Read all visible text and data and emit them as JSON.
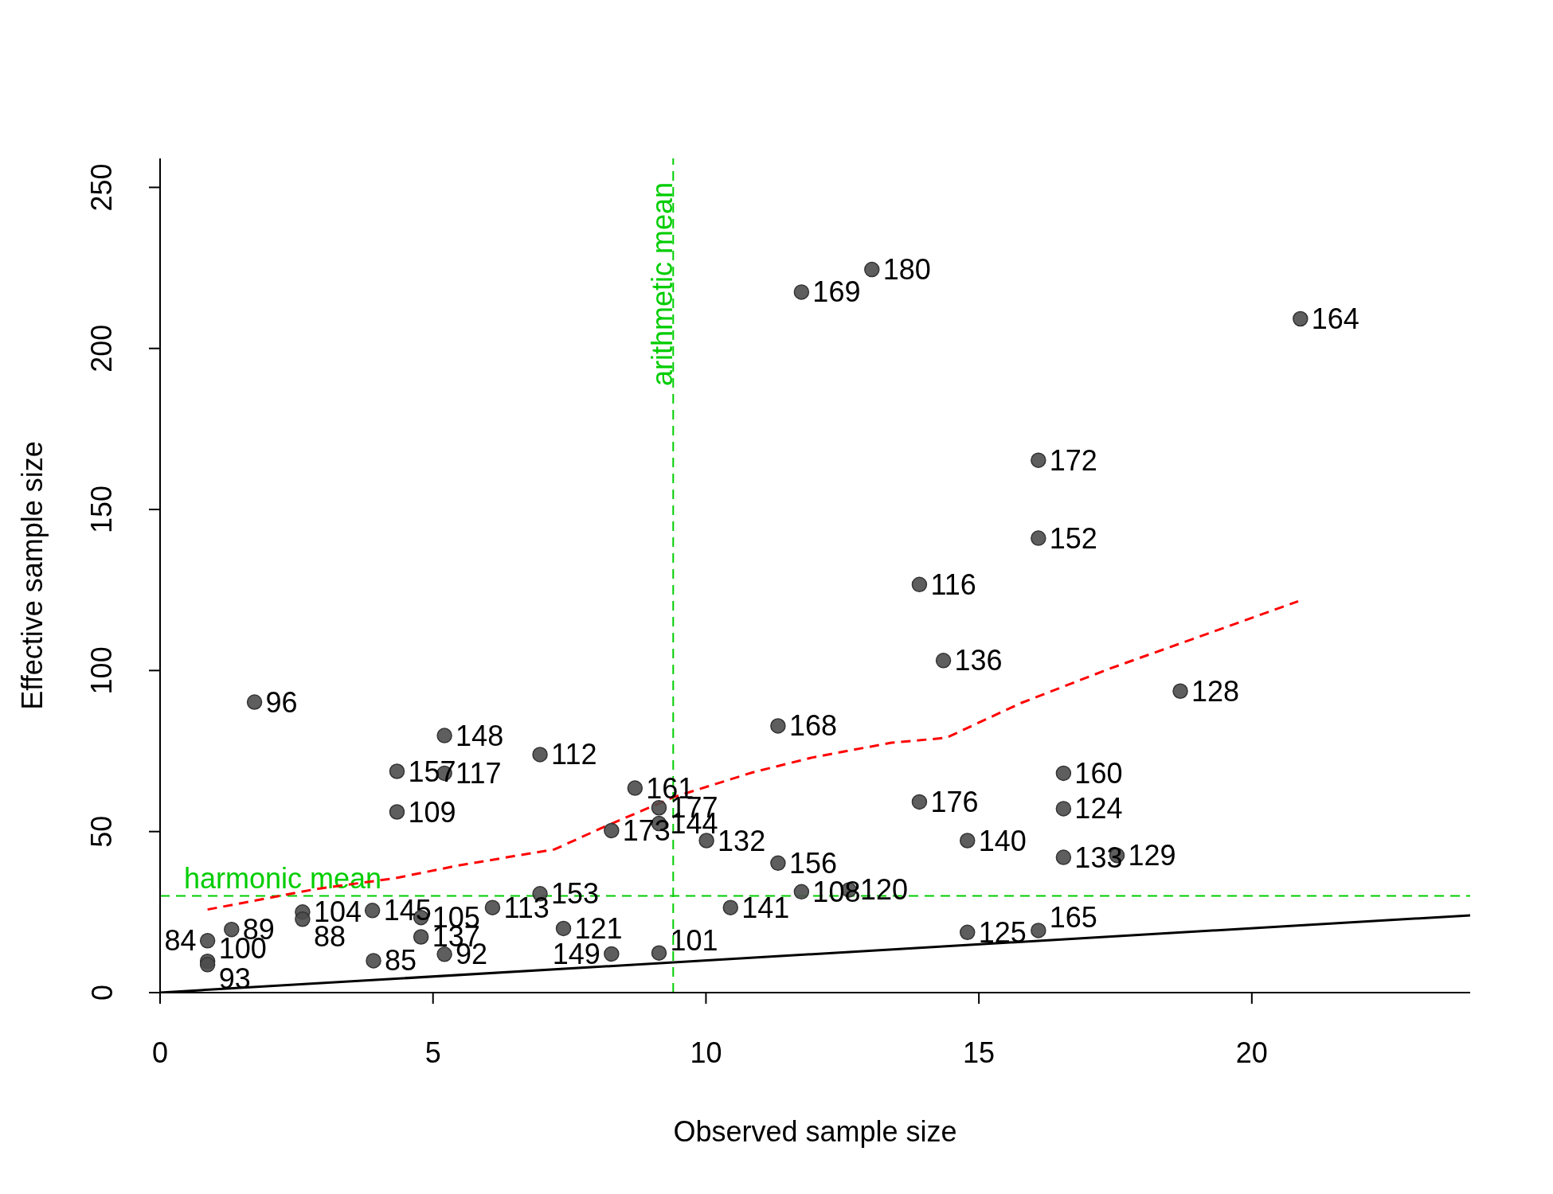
{
  "chart_data": {
    "type": "scatter",
    "xlabel": "Observed sample size",
    "ylabel": "Effective sample size",
    "xlim": [
      0,
      24
    ],
    "ylim": [
      0,
      259
    ],
    "xticks": [
      0,
      5,
      10,
      15,
      20
    ],
    "yticks": [
      0,
      50,
      100,
      150,
      200,
      250
    ],
    "series": [
      {
        "color": "#4d4d4d",
        "marker": "circle",
        "x": [
          1.73,
          5.21,
          4.34,
          5.21,
          4.34,
          6.96,
          8.7,
          9.14,
          8.27,
          9.14,
          10.01,
          11.32,
          11.32,
          11.75,
          12.62,
          10.45,
          6.96,
          6.09,
          7.39,
          8.27,
          9.14,
          13.04,
          11.75,
          20.89,
          16.09,
          16.09,
          13.91,
          14.35,
          18.69,
          16.55,
          16.55,
          13.91,
          14.79,
          16.55,
          17.53,
          14.79,
          16.09,
          2.61,
          2.61,
          3.89,
          4.78,
          4.78,
          5.21,
          3.91,
          1.31,
          0.87,
          0.87,
          0.87
        ],
        "values": [
          90.2,
          79.8,
          68.7,
          68.1,
          56.1,
          73.9,
          63.5,
          57.4,
          50.3,
          52.5,
          47.2,
          82.8,
          40.2,
          31.3,
          31.9,
          26.4,
          30.7,
          26.4,
          19.9,
          12,
          12.3,
          224.5,
          217.5,
          209.2,
          165.3,
          141.1,
          126.7,
          103.1,
          93.6,
          68.1,
          57.1,
          59.2,
          47.2,
          42,
          42.6,
          18.7,
          19.3,
          25,
          22.8,
          25.5,
          23.3,
          17.3,
          11.9,
          9.9,
          19.6,
          16.1,
          9.7,
          8.7
        ]
      },
      {
        "type": "line",
        "color": "#ff0000",
        "marker": "none",
        "line_style": "dashed",
        "x": [
          0.87,
          2.87,
          4.3,
          5.41,
          7.23,
          8.14,
          9.41,
          10.86,
          11.95,
          13.4,
          14.4,
          15.77,
          17.4,
          20.85
        ],
        "values": [
          25.8,
          32.2,
          35.5,
          39.3,
          44.5,
          51.5,
          60.7,
          68.4,
          73,
          77.6,
          79.1,
          89.9,
          100.6,
          121.5
        ]
      },
      {
        "type": "line",
        "color": "#000000",
        "marker": "none",
        "line_style": "solid",
        "x": [
          0,
          24
        ],
        "values": [
          0,
          24
        ]
      }
    ],
    "ref_lines": [
      {
        "axis": "y",
        "value": 30,
        "label": "harmonic mean",
        "color": "#00cd00",
        "line_style": "dashed"
      },
      {
        "axis": "x",
        "value": 9.4,
        "label": "arithmetic mean",
        "color": "#00cd00",
        "line_style": "dashed"
      }
    ],
    "annotations": [
      {
        "text": "96",
        "x": 1.73,
        "y": 90.2
      },
      {
        "text": "148",
        "x": 5.21,
        "y": 79.8
      },
      {
        "text": "157",
        "x": 4.34,
        "y": 68.7
      },
      {
        "text": "117",
        "x": 5.21,
        "y": 68.1
      },
      {
        "text": "109",
        "x": 4.34,
        "y": 56.1
      },
      {
        "text": "112",
        "x": 6.96,
        "y": 73.9
      },
      {
        "text": "161",
        "x": 8.7,
        "y": 63.5
      },
      {
        "text": "177",
        "x": 9.14,
        "y": 57.4
      },
      {
        "text": "173",
        "x": 8.27,
        "y": 50.3
      },
      {
        "text": "144",
        "x": 9.14,
        "y": 52.5
      },
      {
        "text": "132",
        "x": 10.01,
        "y": 47.2
      },
      {
        "text": "168",
        "x": 11.32,
        "y": 82.8
      },
      {
        "text": "156",
        "x": 11.32,
        "y": 40.2
      },
      {
        "text": "108",
        "x": 11.75,
        "y": 31.3
      },
      {
        "text": "120",
        "x": 12.62,
        "y": 31.9
      },
      {
        "text": "141",
        "x": 10.45,
        "y": 26.4
      },
      {
        "text": "153",
        "x": 6.96,
        "y": 30.7
      },
      {
        "text": "113",
        "x": 6.09,
        "y": 26.4
      },
      {
        "text": "121",
        "x": 7.39,
        "y": 19.9
      },
      {
        "text": "149",
        "x": 8.27,
        "y": 12
      },
      {
        "text": "101",
        "x": 9.14,
        "y": 12.3
      },
      {
        "text": "180",
        "x": 13.04,
        "y": 224.5
      },
      {
        "text": "169",
        "x": 11.75,
        "y": 217.5
      },
      {
        "text": "164",
        "x": 20.89,
        "y": 209.2
      },
      {
        "text": "172",
        "x": 16.09,
        "y": 165.3
      },
      {
        "text": "152",
        "x": 16.09,
        "y": 141.1
      },
      {
        "text": "116",
        "x": 13.91,
        "y": 126.7
      },
      {
        "text": "136",
        "x": 14.35,
        "y": 103.1
      },
      {
        "text": "128",
        "x": 18.69,
        "y": 93.6
      },
      {
        "text": "160",
        "x": 16.55,
        "y": 68.1
      },
      {
        "text": "124",
        "x": 16.55,
        "y": 57.1
      },
      {
        "text": "176",
        "x": 13.91,
        "y": 59.2
      },
      {
        "text": "140",
        "x": 14.79,
        "y": 47.2
      },
      {
        "text": "133",
        "x": 16.55,
        "y": 42
      },
      {
        "text": "129",
        "x": 17.53,
        "y": 42.6
      },
      {
        "text": "125",
        "x": 14.79,
        "y": 18.7
      },
      {
        "text": "165",
        "x": 16.09,
        "y": 19.3
      },
      {
        "text": "104",
        "x": 2.61,
        "y": 25
      },
      {
        "text": "88",
        "x": 2.61,
        "y": 22.8
      },
      {
        "text": "145",
        "x": 3.89,
        "y": 25.5
      },
      {
        "text": "105",
        "x": 4.78,
        "y": 23.3
      },
      {
        "text": "137",
        "x": 4.78,
        "y": 17.3
      },
      {
        "text": "92",
        "x": 5.21,
        "y": 11.9
      },
      {
        "text": "85",
        "x": 3.91,
        "y": 9.9
      },
      {
        "text": "89",
        "x": 1.31,
        "y": 19.6
      },
      {
        "text": "84",
        "x": 0.87,
        "y": 16.1
      },
      {
        "text": "100",
        "x": 0.87,
        "y": 9.7
      },
      {
        "text": "93",
        "x": 0.87,
        "y": 8.7
      }
    ]
  }
}
